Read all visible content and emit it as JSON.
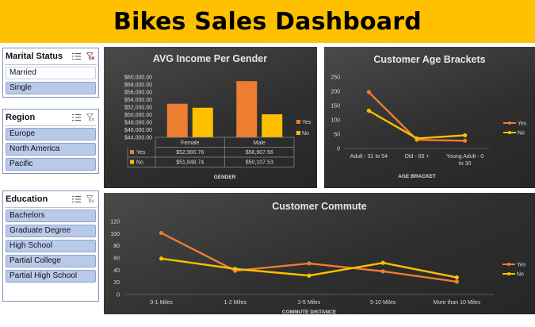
{
  "dashboard": {
    "title": "Bikes Sales Dashboard"
  },
  "colors": {
    "banner": "#FFC000",
    "yes": "#ED7D31",
    "no": "#FFC000",
    "slicer_selected": "#B9C9EA"
  },
  "slicers": {
    "marital": {
      "title": "Marital Status",
      "items": [
        {
          "label": "Married",
          "selected": false
        },
        {
          "label": "Single",
          "selected": true
        }
      ]
    },
    "region": {
      "title": "Region",
      "items": [
        {
          "label": "Europe",
          "selected": true
        },
        {
          "label": "North America",
          "selected": true
        },
        {
          "label": "Pacific",
          "selected": true
        }
      ]
    },
    "education": {
      "title": "Education",
      "items": [
        {
          "label": "Bachelors",
          "selected": true
        },
        {
          "label": "Graduate Degree",
          "selected": true
        },
        {
          "label": "High School",
          "selected": true
        },
        {
          "label": "Partial College",
          "selected": true
        },
        {
          "label": "Partial High School",
          "selected": true
        }
      ]
    }
  },
  "chart_data": [
    {
      "type": "bar",
      "title": "AVG Income Per Gender",
      "xlabel": "GENDER",
      "ylabel": "",
      "categories": [
        "Female",
        "Male"
      ],
      "series": [
        {
          "name": "Yes",
          "values": [
            52900.76,
            58907.56
          ],
          "labels": [
            "$52,900.76",
            "$58,907.56"
          ]
        },
        {
          "name": "No",
          "values": [
            51848.74,
            50107.53
          ],
          "labels": [
            "$51,848.74",
            "$50,107.53"
          ]
        }
      ],
      "ylim": [
        44000,
        60000
      ],
      "yticks": [
        44000,
        46000,
        48000,
        50000,
        52000,
        54000,
        56000,
        58000,
        60000
      ],
      "ytick_labels": [
        "$44,000.00",
        "$46,000.00",
        "$48,000.00",
        "$50,000.00",
        "$52,000.00",
        "$54,000.00",
        "$56,000.00",
        "$58,000.00",
        "$60,000.00"
      ],
      "legend": "right",
      "data_table": true
    },
    {
      "type": "line",
      "title": "Customer Age Brackets",
      "xlabel": "AGE BRACKET",
      "ylabel": "",
      "categories": [
        "Adult - 31 to 54",
        "Old - 55 +",
        "Young Adult - 0 to 30"
      ],
      "series": [
        {
          "name": "Yes",
          "values": [
            197,
            30,
            27
          ]
        },
        {
          "name": "No",
          "values": [
            132,
            35,
            46
          ]
        }
      ],
      "ylim": [
        0,
        250
      ],
      "yticks": [
        0,
        50,
        100,
        150,
        200,
        250
      ],
      "legend": "right"
    },
    {
      "type": "line",
      "title": "Customer Commute",
      "xlabel": "COMMUTE DISTANCE",
      "ylabel": "",
      "categories": [
        "0-1 Miles",
        "1-2 Miles",
        "2-5 Miles",
        "5-10 Miles",
        "More than 10 Miles"
      ],
      "series": [
        {
          "name": "Yes",
          "values": [
            101,
            39,
            51,
            38,
            21
          ]
        },
        {
          "name": "No",
          "values": [
            59,
            42,
            31,
            52,
            28
          ]
        }
      ],
      "ylim": [
        0,
        120
      ],
      "yticks": [
        0,
        20,
        40,
        60,
        80,
        100,
        120
      ],
      "legend": "right"
    }
  ]
}
